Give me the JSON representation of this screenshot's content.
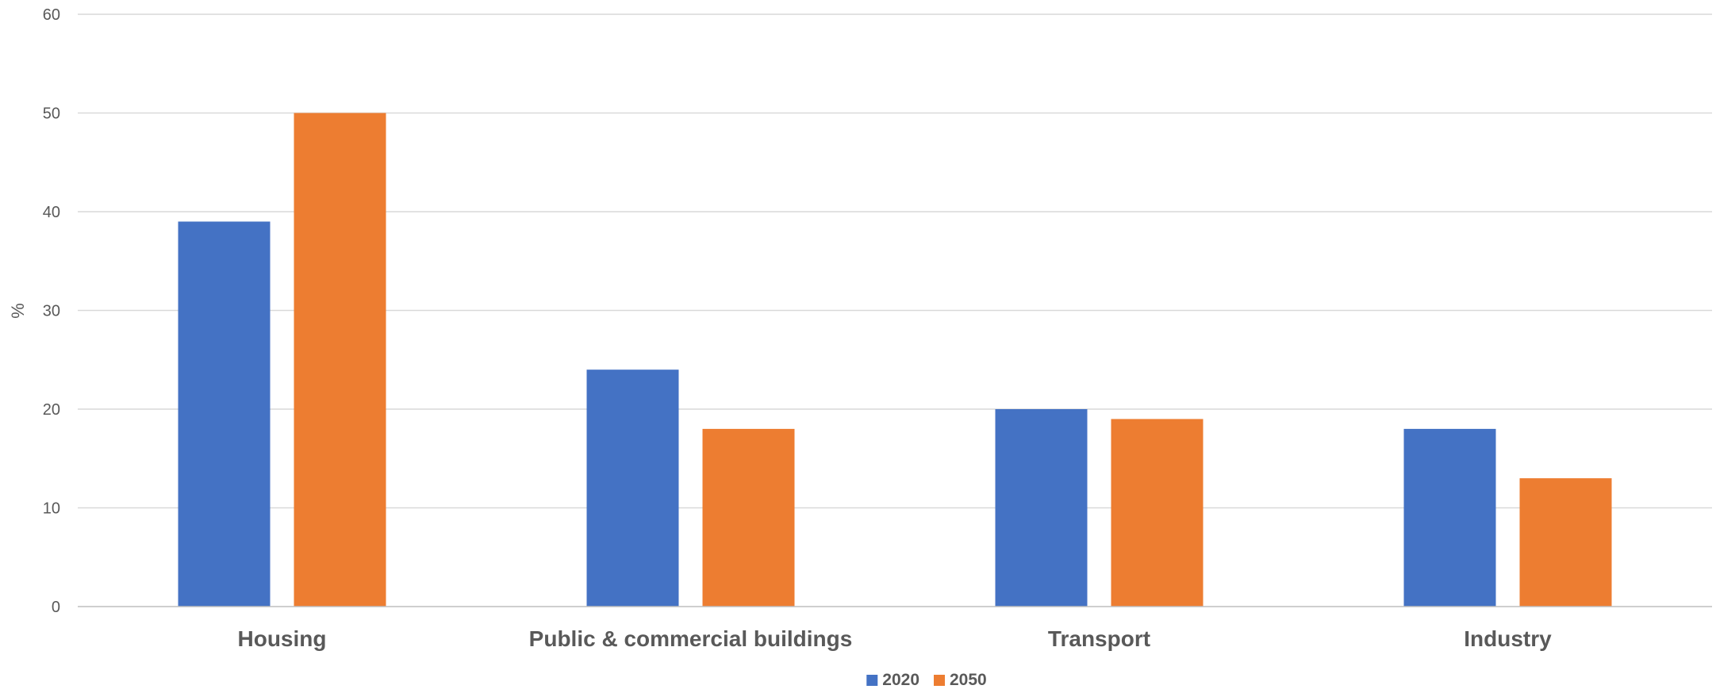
{
  "chart_data": {
    "type": "bar",
    "title": "",
    "xlabel": "",
    "ylabel": "%",
    "ylim": [
      0,
      60
    ],
    "yticks": [
      0,
      10,
      20,
      30,
      40,
      50,
      60
    ],
    "grid": true,
    "legend_position": "bottom-center",
    "categories": [
      "Housing",
      "Public & commercial buildings",
      "Transport",
      "Industry"
    ],
    "series": [
      {
        "name": "2020",
        "color": "#4472c4",
        "values": [
          39,
          24,
          20,
          18
        ]
      },
      {
        "name": "2050",
        "color": "#ed7d31",
        "values": [
          50,
          18,
          19,
          13
        ]
      }
    ]
  }
}
